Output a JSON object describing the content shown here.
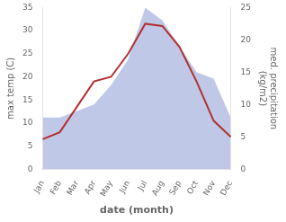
{
  "chart_data": {
    "type": "line",
    "categories": [
      "Jan",
      "Feb",
      "Mar",
      "Apr",
      "May",
      "Jun",
      "Jul",
      "Aug",
      "Sep",
      "Oct",
      "Nov",
      "Dec"
    ],
    "series": [
      {
        "type": "line",
        "color": "#b03030",
        "values": [
          6.5,
          8.0,
          13.5,
          19.0,
          20.0,
          25.0,
          31.5,
          31.0,
          26.5,
          19.0,
          10.5,
          7.0
        ]
      },
      {
        "type": "area",
        "color": "#c0c8e8",
        "axis": "y2",
        "values": [
          8,
          8,
          9,
          10,
          13,
          17,
          25,
          23,
          19,
          15,
          14,
          8
        ]
      }
    ],
    "xlabel": "date (month)",
    "ylabel": "max temp (C)",
    "y2label": "med. precipitation\n(kg/m2)",
    "ylim": [
      0,
      35
    ],
    "yticks": [
      0,
      5,
      10,
      15,
      20,
      25,
      30,
      35
    ],
    "y2lim": [
      0,
      25
    ],
    "y2ticks": [
      0,
      5,
      10,
      15,
      20,
      25
    ],
    "grid": false
  }
}
